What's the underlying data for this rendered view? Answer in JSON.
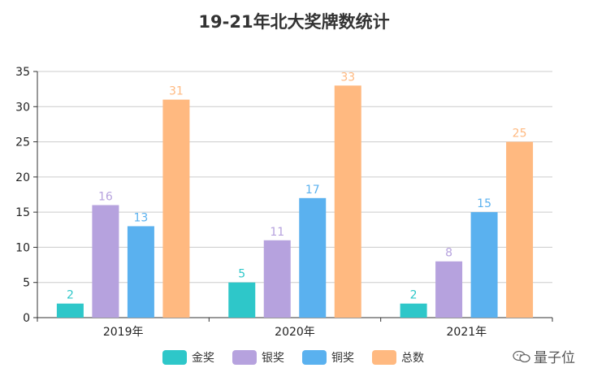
{
  "chart_data": {
    "type": "bar",
    "title": "19-21年北大奖牌数统计",
    "categories": [
      "2019年",
      "2020年",
      "2021年"
    ],
    "series": [
      {
        "name": "金奖",
        "color": "#2ec7c9",
        "values": [
          2,
          5,
          2
        ]
      },
      {
        "name": "银奖",
        "color": "#b6a2de",
        "values": [
          16,
          11,
          8
        ]
      },
      {
        "name": "铜奖",
        "color": "#5ab1ef",
        "values": [
          13,
          17,
          15
        ]
      },
      {
        "name": "总数",
        "color": "#ffb980",
        "values": [
          31,
          33,
          25
        ]
      }
    ],
    "ylim": [
      0,
      35
    ],
    "yticks": [
      0,
      5,
      10,
      15,
      20,
      25,
      30,
      35
    ],
    "xlabel": "",
    "ylabel": "",
    "grid": true,
    "legend": "bottom-center"
  },
  "watermark": {
    "text": "量子位",
    "icon": "wechat-icon"
  }
}
